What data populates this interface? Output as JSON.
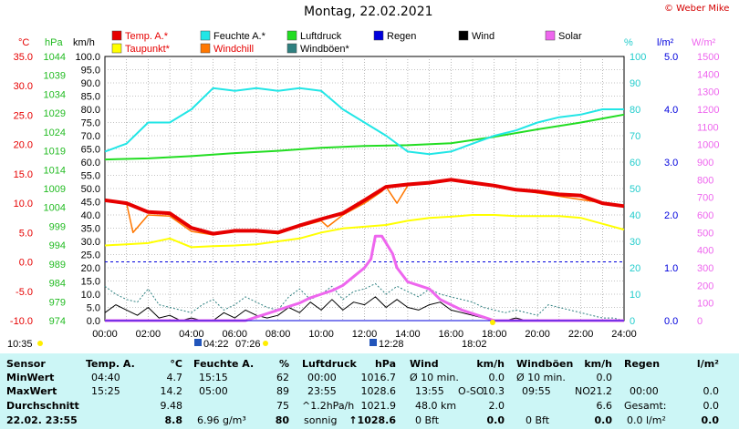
{
  "title": "Montag, 22.02.2021",
  "copyright": "© Weber Mike",
  "colors": {
    "temp": "#e60000",
    "taupunkt": "#ffff00",
    "feuchte": "#22e6e6",
    "windchill": "#ff7700",
    "luftdruck": "#22dd22",
    "windboen": "#2e8080",
    "regen": "#0000dd",
    "wind": "#000000",
    "solar": "#ee66ee",
    "grid": "#000000",
    "stats_bg": "#ccf6f6"
  },
  "legend": [
    {
      "label": "Temp. A.*",
      "color": "#e60000"
    },
    {
      "label": "Feuchte A.*",
      "color": "#22e6e6"
    },
    {
      "label": "Luftdruck",
      "color": "#22dd22"
    },
    {
      "label": "Regen",
      "color": "#0000dd"
    },
    {
      "label": "Wind",
      "color": "#000000"
    },
    {
      "label": "Solar",
      "color": "#ee66ee"
    },
    {
      "label": "Taupunkt*",
      "color": "#ffff00"
    },
    {
      "label": "Windchill",
      "color": "#ff7700"
    },
    {
      "label": "Windböen*",
      "color": "#2e8080"
    }
  ],
  "axis_units": {
    "temp": "°C",
    "hpa": "hPa",
    "kmh": "km/h",
    "pct": "%",
    "rain": "l/m²",
    "solar": "W/m²"
  },
  "axis_ticks": {
    "temp": [
      "35.0",
      "30.0",
      "25.0",
      "20.0",
      "15.0",
      "10.0",
      "5.0",
      "0.0",
      "-5.0",
      "-10.0"
    ],
    "hpa": [
      "1044",
      "1039",
      "1034",
      "1029",
      "1024",
      "1019",
      "1014",
      "1009",
      "1004",
      "999",
      "994",
      "989",
      "984",
      "979",
      "974"
    ],
    "kmh": [
      "100.0",
      "95.0",
      "90.0",
      "85.0",
      "80.0",
      "75.0",
      "70.0",
      "65.0",
      "60.0",
      "55.0",
      "50.0",
      "45.0",
      "40.0",
      "35.0",
      "30.0",
      "25.0",
      "20.0",
      "15.0",
      "10.0",
      "5.0",
      "0.0"
    ],
    "pct": [
      "100",
      "90",
      "80",
      "70",
      "60",
      "50",
      "40",
      "30",
      "20",
      "10",
      "0"
    ],
    "rain": [
      "5.0",
      "4.0",
      "3.0",
      "2.0",
      "1.0",
      "0.0"
    ],
    "solar": [
      "1500",
      "1400",
      "1300",
      "1200",
      "1100",
      "1000",
      "900",
      "800",
      "700",
      "600",
      "500",
      "400",
      "300",
      "200",
      "100",
      "0"
    ]
  },
  "time_labels": [
    "00:00",
    "02:00",
    "04:00",
    "06:00",
    "08:00",
    "10:00",
    "12:00",
    "14:00",
    "16:00",
    "18:00",
    "20:00",
    "22:00",
    "24:00"
  ],
  "events": {
    "sunrise_left": "10:35",
    "e1": "04:22",
    "e2": "07:26",
    "e3": "12:28",
    "e4": "18:02"
  },
  "chart_data": {
    "type": "line",
    "title": "Montag, 22.02.2021",
    "xlabel": "",
    "xlim": [
      0,
      24
    ],
    "series": [
      {
        "name": "Temp. A.*",
        "unit": "°C",
        "x": [
          0,
          1,
          2,
          3,
          4,
          5,
          6,
          7,
          8,
          9,
          10,
          11,
          12,
          13,
          14,
          15,
          16,
          17,
          18,
          19,
          20,
          21,
          22,
          23,
          24
        ],
        "values": [
          10.5,
          10.0,
          8.5,
          8.3,
          5.8,
          4.8,
          5.3,
          5.3,
          5.0,
          6.2,
          7.3,
          8.3,
          10.5,
          12.8,
          13.2,
          13.5,
          14.0,
          13.5,
          13.0,
          12.3,
          12.0,
          11.5,
          11.3,
          10.0,
          9.5
        ]
      },
      {
        "name": "Taupunkt*",
        "unit": "°C",
        "x": [
          0,
          1,
          2,
          3,
          4,
          5,
          6,
          7,
          8,
          9,
          10,
          11,
          12,
          13,
          14,
          15,
          16,
          17,
          18,
          19,
          20,
          21,
          22,
          23,
          24
        ],
        "values": [
          2.8,
          3.0,
          3.2,
          4.0,
          2.5,
          2.7,
          2.8,
          3.0,
          3.5,
          4.0,
          5.0,
          5.7,
          6.0,
          6.3,
          7.0,
          7.5,
          7.7,
          8.0,
          8.0,
          7.8,
          7.8,
          7.8,
          7.5,
          6.5,
          5.5
        ]
      },
      {
        "name": "Windchill",
        "unit": "°C",
        "x": [
          0,
          1,
          1.3,
          2,
          3,
          4,
          5,
          6,
          7,
          8,
          9,
          10,
          10.3,
          11,
          12,
          12.8,
          13,
          13.5,
          14,
          15,
          16,
          24
        ],
        "values": [
          10.5,
          10.0,
          5.0,
          8.0,
          7.8,
          5.2,
          4.6,
          5.2,
          5.2,
          4.8,
          6.0,
          7.0,
          6.0,
          8.0,
          10.0,
          12.0,
          12.8,
          10.0,
          13.0,
          13.5,
          14.0,
          9.5
        ]
      },
      {
        "name": "Feuchte A.*",
        "unit": "%",
        "x": [
          0,
          1,
          2,
          3,
          4,
          5,
          6,
          7,
          8,
          9,
          10,
          11,
          12,
          13,
          14,
          15,
          16,
          17,
          18,
          19,
          20,
          21,
          22,
          23,
          24
        ],
        "values": [
          64,
          67,
          75,
          75,
          80,
          88,
          87,
          88,
          87,
          88,
          87,
          80,
          75,
          70,
          64,
          63,
          64,
          67,
          70,
          72,
          75,
          77,
          78,
          80,
          80
        ]
      },
      {
        "name": "Luftdruck",
        "unit": "hPa",
        "x": [
          0,
          2,
          4,
          6,
          8,
          10,
          12,
          14,
          16,
          18,
          20,
          22,
          24
        ],
        "values": [
          1016.7,
          1017.0,
          1017.6,
          1018.4,
          1019.0,
          1019.8,
          1020.3,
          1020.5,
          1021.0,
          1022.7,
          1024.7,
          1026.5,
          1028.6
        ]
      },
      {
        "name": "Wind",
        "unit": "km/h",
        "x": [
          0,
          0.5,
          1,
          1.5,
          2,
          2.5,
          3,
          3.5,
          4,
          4.5,
          5,
          5.5,
          6,
          6.5,
          7,
          7.5,
          8,
          8.5,
          9,
          9.5,
          10,
          10.5,
          11,
          11.5,
          12,
          12.5,
          13,
          13.5,
          14,
          14.5,
          15,
          15.5,
          16,
          16.5,
          17,
          17.5,
          18,
          18.5,
          19,
          19.5,
          20,
          20.5,
          21,
          21.5,
          22,
          22.5,
          23,
          23.5,
          24
        ],
        "values": [
          3,
          6,
          4,
          2,
          5,
          1,
          2,
          0,
          1,
          0,
          0,
          3,
          1,
          4,
          2,
          1,
          2,
          5,
          3,
          7,
          4,
          8,
          4,
          7,
          6,
          9,
          5,
          8,
          5,
          4,
          6,
          7,
          4,
          3,
          2,
          1,
          0,
          0,
          1,
          0,
          0,
          0,
          0,
          0,
          0,
          0,
          0,
          0,
          0
        ]
      },
      {
        "name": "Windböen*",
        "unit": "km/h",
        "x": [
          0,
          0.5,
          1,
          1.5,
          2,
          2.5,
          3,
          3.5,
          4,
          4.5,
          5,
          5.5,
          6,
          6.5,
          7,
          7.5,
          8,
          8.5,
          9,
          9.5,
          10,
          10.5,
          11,
          11.5,
          12,
          12.5,
          13,
          13.5,
          14,
          14.5,
          15,
          15.5,
          16,
          16.5,
          17,
          17.5,
          18,
          18.5,
          19,
          19.5,
          20,
          20.5,
          21,
          21.5,
          22,
          22.5,
          23,
          23.5,
          24
        ],
        "values": [
          13,
          10,
          8,
          7,
          12,
          6,
          5,
          4,
          3,
          6,
          8,
          4,
          6,
          9,
          7,
          5,
          4,
          9,
          12,
          8,
          10,
          13,
          8,
          11,
          12,
          14,
          10,
          13,
          11,
          9,
          12,
          10,
          9,
          8,
          7,
          5,
          4,
          3,
          4,
          3,
          2,
          6,
          5,
          4,
          3,
          2,
          1,
          1,
          0
        ]
      },
      {
        "name": "Solar",
        "unit": "W/m²",
        "x": [
          0,
          6.5,
          7,
          7.5,
          8,
          8.5,
          9,
          9.5,
          10,
          10.5,
          11,
          11.5,
          12,
          12.3,
          12.5,
          12.8,
          13,
          13.3,
          13.5,
          14,
          14.5,
          15,
          15.5,
          16,
          16.5,
          17,
          17.5,
          18,
          24
        ],
        "values": [
          0,
          0,
          20,
          40,
          60,
          80,
          100,
          130,
          150,
          170,
          200,
          250,
          300,
          350,
          480,
          480,
          440,
          380,
          300,
          220,
          200,
          180,
          120,
          90,
          60,
          40,
          20,
          0,
          0
        ]
      },
      {
        "name": "Regen",
        "unit": "l/m²",
        "x": [
          0,
          24
        ],
        "values": [
          0,
          0
        ]
      }
    ]
  },
  "stats": {
    "headers": {
      "sensor": "Sensor",
      "temp": "Temp. A.",
      "temp_unit": "°C",
      "feuchte": "Feuchte A.",
      "feuchte_unit": "%",
      "luftdruck": "Luftdruck",
      "luftdruck_unit": "hPa",
      "wind": "Wind",
      "wind_unit": "km/h",
      "windboen": "Windböen",
      "windboen_unit": "km/h",
      "regen": "Regen",
      "regen_unit": "l/m²"
    },
    "row_labels": {
      "min": "MinWert",
      "max": "MaxWert",
      "avg": "Durchschnitt",
      "now": "22.02. 23:55"
    },
    "temp": {
      "min_time": "04:40",
      "min": "4.7",
      "max_time": "15:25",
      "max": "14.2",
      "avg": "9.48",
      "now": "8.8"
    },
    "feuchte": {
      "min_time": "15:15",
      "min": "62",
      "max_time": "05:00",
      "max": "89",
      "avg": "75",
      "now_extra": "6.96 g/m³",
      "now": "80"
    },
    "luftdruck": {
      "min_time": "00:00",
      "min": "1016.7",
      "max_time": "23:55",
      "max": "1028.6",
      "avg_label": "^1.2hPa/h",
      "avg": "1021.9",
      "now_label": "sonnig",
      "now": "↑1028.6"
    },
    "wind": {
      "min_label": "Ø 10 min.",
      "min": "0.0",
      "max_time": "13:55",
      "max_dir": "O-SO",
      "max": "10.3",
      "avg_label": "48.0 km",
      "avg": "2.0",
      "now_label": "0 Bft",
      "now": "0.0"
    },
    "windboen": {
      "min_label": "Ø 10 min.",
      "min": "0.0",
      "max_time": "09:55",
      "max_dir": "NO",
      "max": "21.2",
      "avg": "6.6",
      "now_label": "0 Bft",
      "now": "0.0"
    },
    "regen": {
      "max_time": "00:00",
      "max": "0.0",
      "avg_label": "Gesamt:",
      "avg": "0.0",
      "now_label": "0.0 l/m²",
      "now": "0.0"
    }
  }
}
